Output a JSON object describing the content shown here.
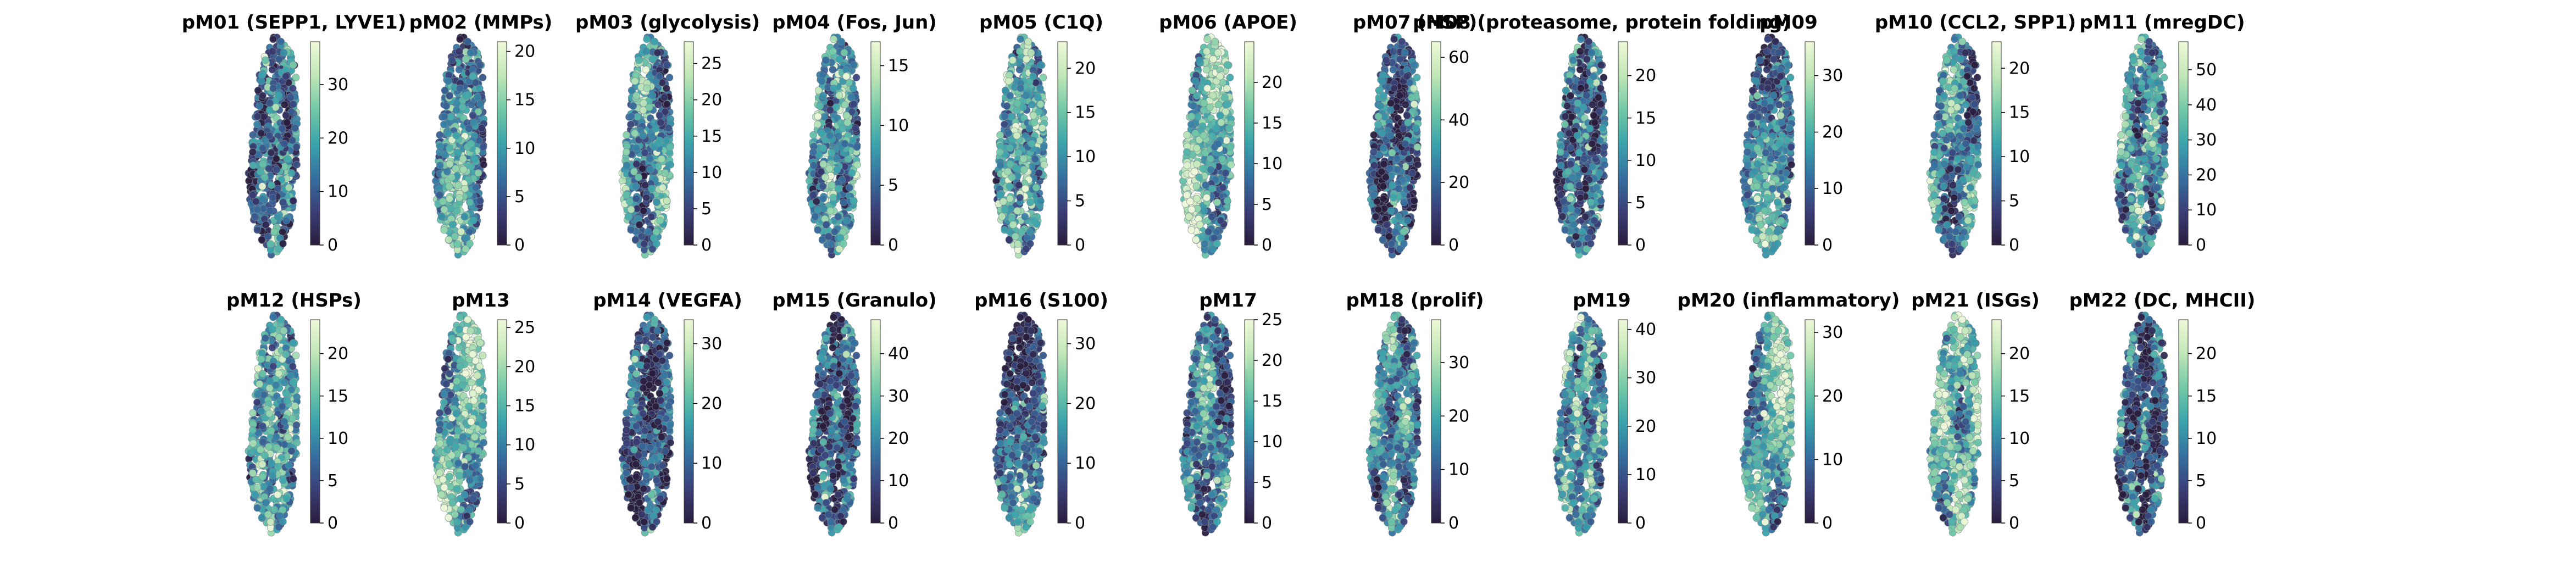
{
  "figure": {
    "colormap": "mako_r",
    "colormap_stops": [
      "#2a1d3e",
      "#3a3f78",
      "#3670a0",
      "#3aa4ac",
      "#73c9a6",
      "#c0e6b7",
      "#eef8d8"
    ],
    "marker_edge_color": "#7a8a96"
  },
  "chart_data": [
    {
      "type": "scatter",
      "title": "pM01 (SEPP1, LYVE1)",
      "colorbar": {
        "vmin": 0,
        "vmax": 38,
        "ticks": [
          0,
          10,
          20,
          30
        ]
      }
    },
    {
      "type": "scatter",
      "title": "pM02 (MMPs)",
      "colorbar": {
        "vmin": 0,
        "vmax": 21,
        "ticks": [
          0,
          5,
          10,
          15,
          20
        ]
      }
    },
    {
      "type": "scatter",
      "title": "pM03 (glycolysis)",
      "colorbar": {
        "vmin": 0,
        "vmax": 28,
        "ticks": [
          0,
          5,
          10,
          15,
          20,
          25
        ]
      }
    },
    {
      "type": "scatter",
      "title": "pM04 (Fos, Jun)",
      "colorbar": {
        "vmin": 0,
        "vmax": 17,
        "ticks": [
          0,
          5,
          10,
          15
        ]
      }
    },
    {
      "type": "scatter",
      "title": "pM05 (C1Q)",
      "colorbar": {
        "vmin": 0,
        "vmax": 23,
        "ticks": [
          0,
          5,
          10,
          15,
          20
        ]
      }
    },
    {
      "type": "scatter",
      "title": "pM06 (APOE)",
      "colorbar": {
        "vmin": 0,
        "vmax": 25,
        "ticks": [
          0,
          5,
          10,
          15,
          20
        ]
      }
    },
    {
      "type": "scatter",
      "title": "pM07 (HSP)",
      "colorbar": {
        "vmin": 0,
        "vmax": 65,
        "ticks": [
          0,
          20,
          40,
          60
        ]
      }
    },
    {
      "type": "scatter",
      "title": "pM08 (proteasome, protein folding)",
      "colorbar": {
        "vmin": 0,
        "vmax": 24,
        "ticks": [
          0,
          5,
          10,
          15,
          20
        ]
      }
    },
    {
      "type": "scatter",
      "title": "pM09",
      "colorbar": {
        "vmin": 0,
        "vmax": 36,
        "ticks": [
          0,
          10,
          20,
          30
        ]
      }
    },
    {
      "type": "scatter",
      "title": "pM10 (CCL2, SPP1)",
      "colorbar": {
        "vmin": 0,
        "vmax": 23,
        "ticks": [
          0,
          5,
          10,
          15,
          20
        ]
      }
    },
    {
      "type": "scatter",
      "title": "pM11 (mregDC)",
      "colorbar": {
        "vmin": 0,
        "vmax": 58,
        "ticks": [
          0,
          10,
          20,
          30,
          40,
          50
        ]
      }
    },
    {
      "type": "scatter",
      "title": "pM12 (HSPs)",
      "colorbar": {
        "vmin": 0,
        "vmax": 24,
        "ticks": [
          0,
          5,
          10,
          15,
          20
        ]
      }
    },
    {
      "type": "scatter",
      "title": "pM13",
      "colorbar": {
        "vmin": 0,
        "vmax": 26,
        "ticks": [
          0,
          5,
          10,
          15,
          20,
          25
        ]
      }
    },
    {
      "type": "scatter",
      "title": "pM14 (VEGFA)",
      "colorbar": {
        "vmin": 0,
        "vmax": 34,
        "ticks": [
          0,
          10,
          20,
          30
        ]
      }
    },
    {
      "type": "scatter",
      "title": "pM15 (Granulo)",
      "colorbar": {
        "vmin": 0,
        "vmax": 48,
        "ticks": [
          0,
          10,
          20,
          30,
          40
        ]
      }
    },
    {
      "type": "scatter",
      "title": "pM16 (S100)",
      "colorbar": {
        "vmin": 0,
        "vmax": 34,
        "ticks": [
          0,
          10,
          20,
          30
        ]
      }
    },
    {
      "type": "scatter",
      "title": "pM17",
      "colorbar": {
        "vmin": 0,
        "vmax": 25,
        "ticks": [
          0,
          5,
          10,
          15,
          20,
          25
        ]
      }
    },
    {
      "type": "scatter",
      "title": "pM18 (prolif)",
      "colorbar": {
        "vmin": 0,
        "vmax": 38,
        "ticks": [
          0,
          10,
          20,
          30
        ]
      }
    },
    {
      "type": "scatter",
      "title": "pM19",
      "colorbar": {
        "vmin": 0,
        "vmax": 42,
        "ticks": [
          0,
          10,
          20,
          30,
          40
        ]
      }
    },
    {
      "type": "scatter",
      "title": "pM20 (inflammatory)",
      "colorbar": {
        "vmin": 0,
        "vmax": 32,
        "ticks": [
          0,
          10,
          20,
          30
        ]
      }
    },
    {
      "type": "scatter",
      "title": "pM21 (ISGs)",
      "colorbar": {
        "vmin": 0,
        "vmax": 24,
        "ticks": [
          0,
          5,
          10,
          15,
          20
        ]
      }
    },
    {
      "type": "scatter",
      "title": "pM22 (DC, MHCII)",
      "colorbar": {
        "vmin": 0,
        "vmax": 24,
        "ticks": [
          0,
          5,
          10,
          15,
          20
        ]
      }
    }
  ]
}
